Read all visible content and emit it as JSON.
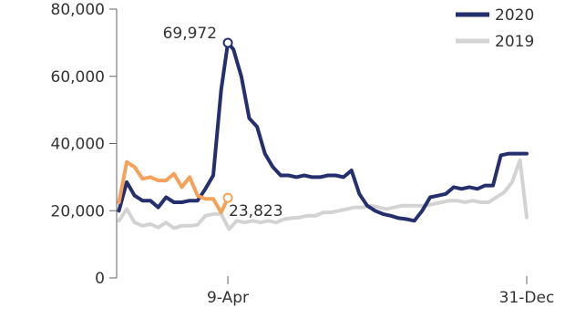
{
  "chart_data": {
    "type": "line",
    "title": "",
    "xlabel": "",
    "ylabel": "",
    "ylim": [
      0,
      80000
    ],
    "y_ticks": [
      0,
      20000,
      40000,
      60000,
      80000
    ],
    "y_tick_labels": [
      "0",
      "20,000",
      "40,000",
      "60,000",
      "80,000"
    ],
    "x_range": [
      "2020-01-01",
      "2020-12-31"
    ],
    "x_ticks": [
      "2020-04-09",
      "2020-12-31"
    ],
    "x_tick_labels": [
      "9-Apr",
      "31-Dec"
    ],
    "grid": false,
    "legend_position": "top-right",
    "series": [
      {
        "name": "2019",
        "color": "#d3d3d3",
        "x": [
          "2020-01-03",
          "2020-01-10",
          "2020-01-17",
          "2020-01-24",
          "2020-01-31",
          "2020-02-07",
          "2020-02-14",
          "2020-02-21",
          "2020-02-28",
          "2020-03-06",
          "2020-03-13",
          "2020-03-20",
          "2020-03-27",
          "2020-04-03",
          "2020-04-10",
          "2020-04-17",
          "2020-04-24",
          "2020-05-01",
          "2020-05-08",
          "2020-05-15",
          "2020-05-22",
          "2020-05-29",
          "2020-06-05",
          "2020-06-12",
          "2020-06-19",
          "2020-06-26",
          "2020-07-03",
          "2020-07-10",
          "2020-07-17",
          "2020-07-24",
          "2020-07-31",
          "2020-08-07",
          "2020-08-14",
          "2020-08-21",
          "2020-08-28",
          "2020-09-04",
          "2020-09-11",
          "2020-09-18",
          "2020-09-25",
          "2020-10-02",
          "2020-10-09",
          "2020-10-16",
          "2020-10-23",
          "2020-10-30",
          "2020-11-06",
          "2020-11-13",
          "2020-11-20",
          "2020-11-27",
          "2020-12-04",
          "2020-12-11",
          "2020-12-18",
          "2020-12-25",
          "2020-12-31"
        ],
        "values": [
          17000,
          20500,
          16500,
          15500,
          16000,
          15000,
          16500,
          14800,
          15500,
          15500,
          15800,
          18500,
          19000,
          19000,
          14500,
          17000,
          16500,
          17000,
          16500,
          17000,
          16500,
          17500,
          17800,
          18000,
          18500,
          18500,
          19500,
          19500,
          20000,
          20500,
          21000,
          21000,
          21500,
          21000,
          20500,
          21000,
          21500,
          21500,
          21500,
          21500,
          22000,
          22500,
          23000,
          23000,
          22500,
          23000,
          22500,
          22500,
          24000,
          25500,
          28500,
          35000,
          18000
        ]
      },
      {
        "name": "2020",
        "color": "#262f6e",
        "x": [
          "2020-01-03",
          "2020-01-10",
          "2020-01-17",
          "2020-01-24",
          "2020-01-31",
          "2020-02-07",
          "2020-02-14",
          "2020-02-21",
          "2020-02-28",
          "2020-03-06",
          "2020-03-13",
          "2020-03-20",
          "2020-03-27",
          "2020-04-03",
          "2020-04-09",
          "2020-04-14",
          "2020-04-21",
          "2020-04-28",
          "2020-05-05",
          "2020-05-12",
          "2020-05-19",
          "2020-05-26",
          "2020-06-02",
          "2020-06-09",
          "2020-06-16",
          "2020-06-23",
          "2020-06-30",
          "2020-07-07",
          "2020-07-14",
          "2020-07-21",
          "2020-07-28",
          "2020-08-04",
          "2020-08-11",
          "2020-08-18",
          "2020-08-25",
          "2020-09-01",
          "2020-09-08",
          "2020-09-15",
          "2020-09-22",
          "2020-09-29",
          "2020-10-06",
          "2020-10-13",
          "2020-10-20",
          "2020-10-27",
          "2020-11-03",
          "2020-11-10",
          "2020-11-17",
          "2020-11-24",
          "2020-12-01",
          "2020-12-08",
          "2020-12-15",
          "2020-12-22",
          "2020-12-31"
        ],
        "values": [
          20000,
          28500,
          24500,
          23000,
          23000,
          21000,
          24000,
          22500,
          22500,
          23000,
          23000,
          26500,
          30500,
          56000,
          69972,
          68000,
          60000,
          47500,
          45000,
          37000,
          33000,
          30500,
          30500,
          30000,
          30500,
          30000,
          30000,
          30500,
          30500,
          30000,
          32000,
          25000,
          21500,
          20000,
          19000,
          18500,
          17800,
          17500,
          17000,
          20000,
          24000,
          24500,
          25000,
          27000,
          26500,
          27000,
          26500,
          27500,
          27500,
          36500,
          37000,
          37000,
          37000
        ]
      },
      {
        "name": "",
        "color": "#f4a259",
        "x": [
          "2020-01-03",
          "2020-01-10",
          "2020-01-17",
          "2020-01-24",
          "2020-01-31",
          "2020-02-07",
          "2020-02-14",
          "2020-02-21",
          "2020-02-28",
          "2020-03-06",
          "2020-03-13",
          "2020-03-20",
          "2020-03-27",
          "2020-04-03",
          "2020-04-09"
        ],
        "values": [
          22500,
          34500,
          33000,
          29500,
          30000,
          29000,
          29000,
          31000,
          27000,
          30000,
          24500,
          23500,
          23500,
          19500,
          23823
        ]
      }
    ],
    "annotations": [
      {
        "text": "69,972",
        "series": "2020",
        "x": "2020-04-09",
        "y": 69972
      },
      {
        "text": "23,823",
        "series": "",
        "x": "2020-04-09",
        "y": 23823
      }
    ]
  }
}
